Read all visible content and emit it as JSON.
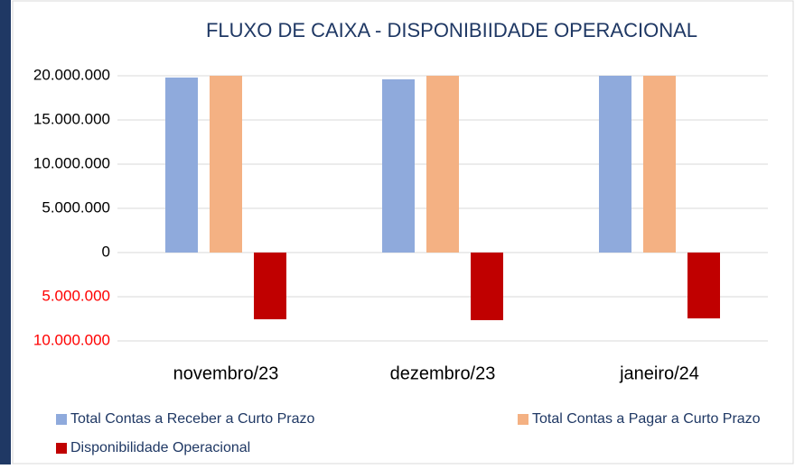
{
  "chart_data": {
    "type": "bar",
    "title": "FLUXO DE CAIXA - DISPONIBIIDADE OPERACIONAL",
    "categories": [
      "novembro/23",
      "dezembro/23",
      "janeiro/24"
    ],
    "series": [
      {
        "name": "Total Contas a Receber  a Curto Prazo",
        "color": "#8faadc",
        "values": [
          19800000,
          19600000,
          20000000
        ]
      },
      {
        "name": "Total Contas a Pagar a Curto Prazo",
        "color": "#f4b183",
        "values": [
          20000000,
          20000000,
          20000000
        ]
      },
      {
        "name": "Disponibilidade Operacional",
        "color": "#c00000",
        "values": [
          -7550000,
          -7650000,
          -7450000
        ]
      }
    ],
    "ylim": [
      -10000000,
      20000000
    ],
    "yticks": [
      {
        "value": -10000000,
        "label": "10.000.000"
      },
      {
        "value": -5000000,
        "label": "5.000.000"
      },
      0,
      {
        "value": 5000000,
        "label": "5.000.000"
      },
      {
        "value": 10000000,
        "label": "10.000.000"
      },
      {
        "value": 15000000,
        "label": "15.000.000"
      },
      {
        "value": 20000000,
        "label": "20.000.000"
      }
    ],
    "negative_tick_color": "#ff0000",
    "grid": true,
    "legend": "bottom"
  }
}
